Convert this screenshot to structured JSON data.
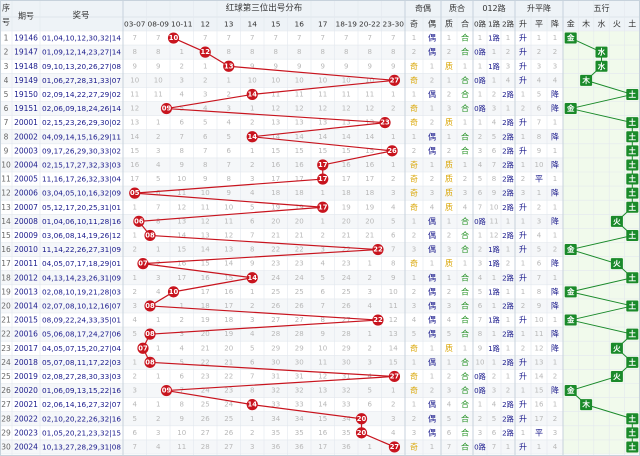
{
  "chart_data": {
    "type": "table",
    "title": "红球第三位出号分布",
    "headers": {
      "seq": "序号",
      "period": "期号",
      "draw": "奖号",
      "odd_even": "奇偶",
      "prime": "质合",
      "route": "012路",
      "trend": "升平降",
      "wuxing": "五行"
    },
    "sub_headers": {
      "odd_even": [
        "奇",
        "偶"
      ],
      "prime": [
        "质",
        "合"
      ],
      "route": [
        "0路",
        "1路",
        "2路"
      ],
      "trend": [
        "升",
        "平",
        "降"
      ],
      "wuxing": [
        "金",
        "木",
        "水",
        "火",
        "土"
      ]
    },
    "range_columns": [
      "03-07",
      "08-09",
      "10-11",
      "12",
      "13",
      "14",
      "15",
      "16",
      "17",
      "18-19",
      "20-22",
      "23-30"
    ],
    "rows": [
      {
        "seq": "1",
        "period": "19146",
        "draw": "01,04,10,12,30,32|14",
        "value": 10,
        "odd_even": "偶",
        "prime": "合",
        "route": "1路",
        "trend": "升",
        "wuxing": "金"
      },
      {
        "seq": "2",
        "period": "19147",
        "draw": "01,09,12,14,23,27|14",
        "value": 12,
        "odd_even": "偶",
        "prime": "合",
        "route": "0路",
        "trend": "升",
        "wuxing": "水"
      },
      {
        "seq": "3",
        "period": "19148",
        "draw": "09,10,13,20,26,27|08",
        "value": 13,
        "odd_even": "奇",
        "prime": "质",
        "route": "1路",
        "trend": "升",
        "wuxing": "水"
      },
      {
        "seq": "4",
        "period": "19149",
        "draw": "01,06,27,28,31,33|07",
        "value": 27,
        "odd_even": "奇",
        "prime": "合",
        "route": "0路",
        "trend": "升",
        "wuxing": "木"
      },
      {
        "seq": "5",
        "period": "19150",
        "draw": "02,09,14,22,27,29|02",
        "value": 14,
        "odd_even": "偶",
        "prime": "合",
        "route": "2路",
        "trend": "降",
        "wuxing": "土"
      },
      {
        "seq": "6",
        "period": "19151",
        "draw": "02,06,09,18,24,26|14",
        "value": 9,
        "odd_even": "奇",
        "prime": "合",
        "route": "0路",
        "trend": "降",
        "wuxing": "金"
      },
      {
        "seq": "7",
        "period": "20001",
        "draw": "02,15,23,26,29,30|02",
        "value": 23,
        "odd_even": "奇",
        "prime": "质",
        "route": "2路",
        "trend": "升",
        "wuxing": "土"
      },
      {
        "seq": "8",
        "period": "20002",
        "draw": "04,09,14,15,16,29|11",
        "value": 14,
        "odd_even": "偶",
        "prime": "合",
        "route": "2路",
        "trend": "降",
        "wuxing": "土"
      },
      {
        "seq": "9",
        "period": "20003",
        "draw": "09,17,26,29,30,33|02",
        "value": 26,
        "odd_even": "偶",
        "prime": "合",
        "route": "2路",
        "trend": "升",
        "wuxing": "土"
      },
      {
        "seq": "10",
        "period": "20004",
        "draw": "02,15,17,27,32,33|03",
        "value": 17,
        "odd_even": "奇",
        "prime": "质",
        "route": "2路",
        "trend": "降",
        "wuxing": "土"
      },
      {
        "seq": "11",
        "period": "20005",
        "draw": "11,16,17,26,32,33|04",
        "value": 17,
        "odd_even": "奇",
        "prime": "质",
        "route": "2路",
        "trend": "平",
        "wuxing": "土"
      },
      {
        "seq": "12",
        "period": "20006",
        "draw": "03,04,05,10,16,32|09",
        "value": 5,
        "odd_even": "奇",
        "prime": "质",
        "route": "2路",
        "trend": "降",
        "wuxing": "土"
      },
      {
        "seq": "13",
        "period": "20007",
        "draw": "05,12,17,20,25,31|01",
        "value": 17,
        "odd_even": "奇",
        "prime": "质",
        "route": "2路",
        "trend": "升",
        "wuxing": "土"
      },
      {
        "seq": "14",
        "period": "20008",
        "draw": "01,04,06,10,11,28|16",
        "value": 6,
        "odd_even": "偶",
        "prime": "合",
        "route": "0路",
        "trend": "降",
        "wuxing": "火"
      },
      {
        "seq": "15",
        "period": "20009",
        "draw": "03,06,08,14,19,26|12",
        "value": 8,
        "odd_even": "偶",
        "prime": "合",
        "route": "2路",
        "trend": "升",
        "wuxing": "土"
      },
      {
        "seq": "16",
        "period": "20010",
        "draw": "11,14,22,26,27,31|09",
        "value": 22,
        "odd_even": "偶",
        "prime": "合",
        "route": "1路",
        "trend": "升",
        "wuxing": "金"
      },
      {
        "seq": "17",
        "period": "20011",
        "draw": "04,05,07,17,18,29|01",
        "value": 7,
        "odd_even": "奇",
        "prime": "质",
        "route": "1路",
        "trend": "降",
        "wuxing": "火"
      },
      {
        "seq": "18",
        "period": "20012",
        "draw": "04,13,14,23,26,31|09",
        "value": 14,
        "odd_even": "偶",
        "prime": "合",
        "route": "2路",
        "trend": "升",
        "wuxing": "土"
      },
      {
        "seq": "19",
        "period": "20013",
        "draw": "02,08,10,19,21,28|03",
        "value": 10,
        "odd_even": "偶",
        "prime": "合",
        "route": "1路",
        "trend": "降",
        "wuxing": "金"
      },
      {
        "seq": "20",
        "period": "20014",
        "draw": "02,07,08,10,12,16|07",
        "value": 8,
        "odd_even": "偶",
        "prime": "合",
        "route": "2路",
        "trend": "降",
        "wuxing": "土"
      },
      {
        "seq": "21",
        "period": "20015",
        "draw": "08,09,22,24,33,35|01",
        "value": 22,
        "odd_even": "偶",
        "prime": "合",
        "route": "1路",
        "trend": "升",
        "wuxing": "金"
      },
      {
        "seq": "22",
        "period": "20016",
        "draw": "05,06,08,17,24,27|06",
        "value": 8,
        "odd_even": "偶",
        "prime": "合",
        "route": "2路",
        "trend": "降",
        "wuxing": "土"
      },
      {
        "seq": "23",
        "period": "20017",
        "draw": "04,05,07,15,20,27|04",
        "value": 7,
        "odd_even": "奇",
        "prime": "质",
        "route": "1路",
        "trend": "降",
        "wuxing": "火"
      },
      {
        "seq": "24",
        "period": "20018",
        "draw": "05,07,08,11,17,22|03",
        "value": 8,
        "odd_even": "偶",
        "prime": "合",
        "route": "2路",
        "trend": "升",
        "wuxing": "土"
      },
      {
        "seq": "25",
        "period": "20019",
        "draw": "02,08,27,28,30,33|03",
        "value": 27,
        "odd_even": "奇",
        "prime": "合",
        "route": "0路",
        "trend": "升",
        "wuxing": "火"
      },
      {
        "seq": "26",
        "period": "20020",
        "draw": "01,06,09,13,15,22|16",
        "value": 9,
        "odd_even": "奇",
        "prime": "合",
        "route": "0路",
        "trend": "降",
        "wuxing": "金"
      },
      {
        "seq": "27",
        "period": "20021",
        "draw": "02,06,14,16,27,32|07",
        "value": 14,
        "odd_even": "偶",
        "prime": "合",
        "route": "2路",
        "trend": "升",
        "wuxing": "木"
      },
      {
        "seq": "28",
        "period": "20022",
        "draw": "02,10,20,22,26,32|16",
        "value": 20,
        "odd_even": "偶",
        "prime": "合",
        "route": "2路",
        "trend": "升",
        "wuxing": "土"
      },
      {
        "seq": "29",
        "period": "20023",
        "draw": "01,05,20,21,23,32|15",
        "value": 20,
        "odd_even": "偶",
        "prime": "合",
        "route": "2路",
        "trend": "平",
        "wuxing": "土"
      },
      {
        "seq": "30",
        "period": "20024",
        "draw": "10,13,27,28,29,31|08",
        "value": 27,
        "odd_even": "奇",
        "prime": "合",
        "route": "0路",
        "trend": "升",
        "wuxing": "土"
      }
    ]
  },
  "colors": {
    "ball": "#c8141e",
    "line": "#c8141e",
    "header_bg": "#eef3f7",
    "header_text": "#333333",
    "miss_text": "#b8b8b8",
    "seq_text": "#666666",
    "period_text": "#1a1a8c",
    "draw_text": "#1a1a8c",
    "value_text": "#1a1a8c",
    "odd_text": "#d9a400",
    "even_text": "#1a1a8c",
    "prime_text": "#d9a400",
    "composite_text": "#1a8c1a",
    "route_text": "#1a1a8c",
    "trend_text": "#1a1a8c",
    "wuxing_box": "#1a8a2a",
    "wuxing_line": "#1a8a2a",
    "grid": "#e3e8ee",
    "band": "#f5f7f9",
    "wuxing_bg": "#f1faec"
  }
}
